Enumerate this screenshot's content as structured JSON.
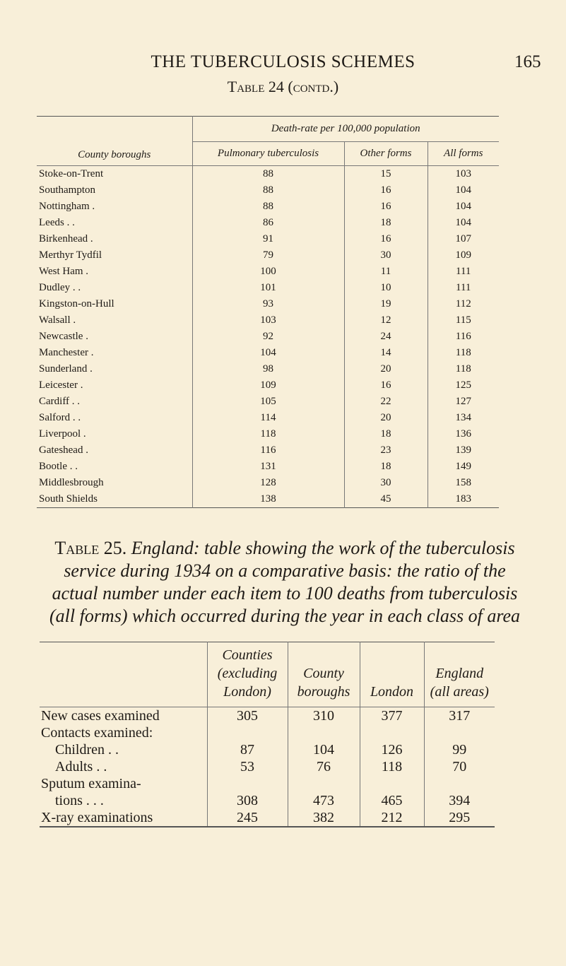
{
  "page": {
    "running_head": "THE TUBERCULOSIS SCHEMES",
    "page_number": "165"
  },
  "table24": {
    "title": "Table 24 (contd.)",
    "group_header": "Death-rate per 100,000 population",
    "columns": [
      "County boroughs",
      "Pulmonary tuberculosis",
      "Other forms",
      "All forms"
    ],
    "rows": [
      {
        "name": "Stoke-on-Trent",
        "pulmonary": "88",
        "other": "15",
        "all": "103"
      },
      {
        "name": "Southampton",
        "pulmonary": "88",
        "other": "16",
        "all": "104"
      },
      {
        "name": "Nottingham .",
        "pulmonary": "88",
        "other": "16",
        "all": "104"
      },
      {
        "name": "Leeds . .",
        "pulmonary": "86",
        "other": "18",
        "all": "104"
      },
      {
        "name": "Birkenhead .",
        "pulmonary": "91",
        "other": "16",
        "all": "107"
      },
      {
        "name": "Merthyr Tydfil",
        "pulmonary": "79",
        "other": "30",
        "all": "109"
      },
      {
        "name": "West Ham .",
        "pulmonary": "100",
        "other": "11",
        "all": "111"
      },
      {
        "name": "Dudley . .",
        "pulmonary": "101",
        "other": "10",
        "all": "111"
      },
      {
        "name": "Kingston-on-Hull",
        "pulmonary": "93",
        "other": "19",
        "all": "112"
      },
      {
        "name": "Walsall .",
        "pulmonary": "103",
        "other": "12",
        "all": "115"
      },
      {
        "name": "Newcastle .",
        "pulmonary": "92",
        "other": "24",
        "all": "116"
      },
      {
        "name": "Manchester .",
        "pulmonary": "104",
        "other": "14",
        "all": "118"
      },
      {
        "name": "Sunderland .",
        "pulmonary": "98",
        "other": "20",
        "all": "118"
      },
      {
        "name": "Leicester .",
        "pulmonary": "109",
        "other": "16",
        "all": "125"
      },
      {
        "name": "Cardiff . .",
        "pulmonary": "105",
        "other": "22",
        "all": "127"
      },
      {
        "name": "Salford . .",
        "pulmonary": "114",
        "other": "20",
        "all": "134"
      },
      {
        "name": "Liverpool .",
        "pulmonary": "118",
        "other": "18",
        "all": "136"
      },
      {
        "name": "Gateshead .",
        "pulmonary": "116",
        "other": "23",
        "all": "139"
      },
      {
        "name": "Bootle . .",
        "pulmonary": "131",
        "other": "18",
        "all": "149"
      },
      {
        "name": "Middlesbrough",
        "pulmonary": "128",
        "other": "30",
        "all": "158"
      },
      {
        "name": "South Shields",
        "pulmonary": "138",
        "other": "45",
        "all": "183"
      }
    ]
  },
  "table25": {
    "label": "Table 25.",
    "caption": "England: table showing the work of the tuberculosis service during 1934 on a comparative basis: the ratio of the actual number under each item to 100 deaths from tuberculosis (all forms) which occurred during the year in each class of area",
    "columns": [
      "",
      "Counties (excluding London)",
      "County boroughs",
      "London",
      "England (all areas)"
    ],
    "rows": [
      {
        "label": "New cases examined",
        "values": [
          "305",
          "310",
          "377",
          "317"
        ]
      },
      {
        "label": "Contacts examined:",
        "values": [
          "",
          "",
          "",
          ""
        ]
      },
      {
        "label": "Children . .",
        "values": [
          "87",
          "104",
          "126",
          "99"
        ],
        "indent": true
      },
      {
        "label": "Adults . .",
        "values": [
          "53",
          "76",
          "118",
          "70"
        ],
        "indent": true
      },
      {
        "label": "Sputum examina-",
        "values": [
          "",
          "",
          "",
          ""
        ]
      },
      {
        "label": "tions . . .",
        "values": [
          "308",
          "473",
          "465",
          "394"
        ],
        "indent": true
      },
      {
        "label": "X-ray examinations",
        "values": [
          "245",
          "382",
          "212",
          "295"
        ]
      }
    ]
  }
}
